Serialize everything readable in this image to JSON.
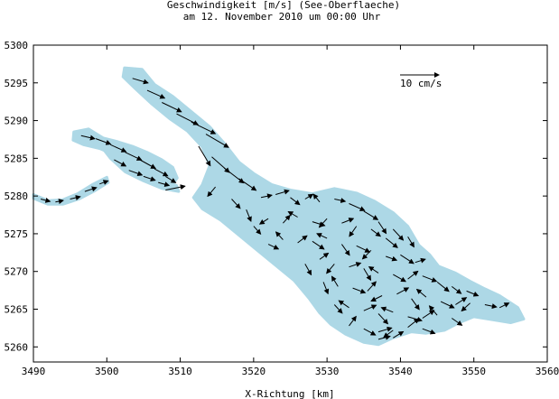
{
  "chart_data": {
    "type": "vector-field",
    "title": "Geschwindigkeit [m/s] (See-Oberflaeche)",
    "subtitle": "am 12. November 2010 um 00:00 Uhr",
    "xlabel": "X-Richtung [km]",
    "ylabel": "",
    "xlim": [
      3490,
      3560
    ],
    "ylim": [
      5258,
      5300
    ],
    "xticks": [
      3490,
      3500,
      3510,
      3520,
      3530,
      3540,
      3550,
      3560
    ],
    "yticks": [
      5260,
      5265,
      5270,
      5275,
      5280,
      5285,
      5290,
      5295,
      5300
    ],
    "grid": false,
    "reference_vector": {
      "label": "10 cm/s",
      "value": 0.1
    },
    "colors": {
      "lake": "#add8e6",
      "vector": "#000000",
      "frame": "#000000"
    },
    "lake_outline": [
      [
        3502.4,
        5297.0
      ],
      [
        3504.8,
        5296.8
      ],
      [
        3506.5,
        5294.8
      ],
      [
        3509.0,
        5293.2
      ],
      [
        3511.5,
        5291.2
      ],
      [
        3514.0,
        5289.2
      ],
      [
        3516.0,
        5287.0
      ],
      [
        3518.0,
        5284.5
      ],
      [
        3520.0,
        5283.0
      ],
      [
        3522.5,
        5281.5
      ],
      [
        3525.0,
        5280.8
      ],
      [
        3528.0,
        5280.3
      ],
      [
        3531.0,
        5281.0
      ],
      [
        3534.0,
        5280.4
      ],
      [
        3536.5,
        5279.3
      ],
      [
        3539.0,
        5277.8
      ],
      [
        3541.0,
        5276.0
      ],
      [
        3542.5,
        5273.5
      ],
      [
        3544.0,
        5272.2
      ],
      [
        3545.2,
        5270.7
      ],
      [
        3547.5,
        5269.8
      ],
      [
        3549.5,
        5268.7
      ],
      [
        3551.5,
        5267.7
      ],
      [
        3553.5,
        5266.8
      ],
      [
        3556.0,
        5265.2
      ],
      [
        3556.8,
        5263.7
      ],
      [
        3555.0,
        5263.2
      ],
      [
        3552.5,
        5263.6
      ],
      [
        3550.0,
        5264.0
      ],
      [
        3548.0,
        5263.2
      ],
      [
        3546.0,
        5262.2
      ],
      [
        3543.5,
        5261.8
      ],
      [
        3541.5,
        5262.0
      ],
      [
        3539.0,
        5261.2
      ],
      [
        3537.0,
        5260.3
      ],
      [
        3535.0,
        5260.6
      ],
      [
        3532.5,
        5261.7
      ],
      [
        3530.5,
        5263.0
      ],
      [
        3529.0,
        5264.5
      ],
      [
        3527.5,
        5266.5
      ],
      [
        3525.5,
        5268.8
      ],
      [
        3523.0,
        5270.8
      ],
      [
        3520.5,
        5272.8
      ],
      [
        3518.0,
        5274.8
      ],
      [
        3515.5,
        5276.8
      ],
      [
        3513.0,
        5278.3
      ],
      [
        3511.8,
        5279.8
      ],
      [
        3513.0,
        5281.5
      ],
      [
        3514.0,
        5284.0
      ],
      [
        3513.0,
        5286.5
      ],
      [
        3511.0,
        5288.6
      ],
      [
        3508.5,
        5290.3
      ],
      [
        3506.0,
        5292.3
      ],
      [
        3503.8,
        5294.3
      ],
      [
        3502.2,
        5295.8
      ]
    ],
    "arm_outline": [
      [
        3495.5,
        5288.5
      ],
      [
        3497.5,
        5288.9
      ],
      [
        3499.5,
        5287.7
      ],
      [
        3501.5,
        5287.2
      ],
      [
        3503.5,
        5286.6
      ],
      [
        3505.5,
        5285.8
      ],
      [
        3507.5,
        5284.8
      ],
      [
        3509.0,
        5283.8
      ],
      [
        3509.6,
        5282.4
      ],
      [
        3509.0,
        5281.6
      ],
      [
        3507.0,
        5282.2
      ],
      [
        3505.0,
        5283.2
      ],
      [
        3503.0,
        5284.4
      ],
      [
        3501.0,
        5285.5
      ],
      [
        3499.0,
        5286.3
      ],
      [
        3496.8,
        5286.8
      ],
      [
        3495.4,
        5287.4
      ]
    ],
    "channel_outline": [
      [
        3499.5,
        5287.4
      ],
      [
        3500.6,
        5287.0
      ],
      [
        3502.5,
        5284.8
      ],
      [
        3505.0,
        5283.0
      ],
      [
        3507.0,
        5282.2
      ],
      [
        3509.5,
        5281.4
      ],
      [
        3509.8,
        5280.6
      ],
      [
        3507.5,
        5281.0
      ],
      [
        3505.0,
        5282.0
      ],
      [
        3502.5,
        5283.2
      ],
      [
        3500.5,
        5285.0
      ],
      [
        3499.2,
        5286.6
      ]
    ],
    "rhine_outline": [
      [
        3490.0,
        5280.2
      ],
      [
        3492.0,
        5279.4
      ],
      [
        3494.0,
        5279.5
      ],
      [
        3496.0,
        5280.3
      ],
      [
        3498.0,
        5281.5
      ],
      [
        3500.0,
        5282.5
      ],
      [
        3500.2,
        5281.8
      ],
      [
        3498.2,
        5280.6
      ],
      [
        3496.2,
        5279.6
      ],
      [
        3494.0,
        5278.9
      ],
      [
        3492.0,
        5278.9
      ],
      [
        3490.0,
        5279.7
      ]
    ],
    "vectors": [
      [
        3503.5,
        5295.6,
        0.04,
        -0.012
      ],
      [
        3505.5,
        5294.0,
        0.045,
        -0.02
      ],
      [
        3507.5,
        5292.4,
        0.05,
        -0.024
      ],
      [
        3509.5,
        5290.9,
        0.055,
        -0.028
      ],
      [
        3511.5,
        5289.8,
        0.062,
        -0.03
      ],
      [
        3513.5,
        5288.2,
        0.058,
        -0.034
      ],
      [
        3512.5,
        5286.6,
        0.03,
        -0.05
      ],
      [
        3514.3,
        5285.2,
        0.045,
        -0.04
      ],
      [
        3516.0,
        5283.7,
        0.05,
        -0.038
      ],
      [
        3518.0,
        5282.3,
        0.044,
        -0.03
      ],
      [
        3514.8,
        5281.2,
        -0.02,
        -0.024
      ],
      [
        3517.0,
        5279.6,
        0.022,
        -0.024
      ],
      [
        3519.0,
        5278.2,
        0.012,
        -0.03
      ],
      [
        3521.0,
        5279.8,
        0.028,
        0.006
      ],
      [
        3523.0,
        5280.2,
        0.034,
        0.01
      ],
      [
        3525.0,
        5279.8,
        0.024,
        -0.018
      ],
      [
        3527.0,
        5279.6,
        0.02,
        0.012
      ],
      [
        3529.0,
        5279.2,
        -0.016,
        0.02
      ],
      [
        3531.0,
        5279.6,
        0.028,
        -0.006
      ],
      [
        3533.0,
        5279.0,
        0.04,
        -0.018
      ],
      [
        3535.0,
        5278.0,
        0.036,
        -0.022
      ],
      [
        3537.0,
        5276.6,
        0.02,
        -0.03
      ],
      [
        3539.0,
        5275.6,
        0.026,
        -0.028
      ],
      [
        3541.0,
        5274.6,
        0.016,
        -0.026
      ],
      [
        3520.0,
        5276.0,
        0.018,
        -0.02
      ],
      [
        3522.0,
        5277.0,
        -0.022,
        -0.014
      ],
      [
        3524.0,
        5276.4,
        0.018,
        0.02
      ],
      [
        3526.0,
        5277.2,
        -0.024,
        0.014
      ],
      [
        3528.0,
        5276.6,
        0.032,
        -0.01
      ],
      [
        3530.0,
        5277.0,
        -0.02,
        -0.022
      ],
      [
        3532.0,
        5276.4,
        0.03,
        0.012
      ],
      [
        3534.0,
        5276.0,
        -0.018,
        -0.026
      ],
      [
        3536.0,
        5275.6,
        0.024,
        -0.018
      ],
      [
        3538.0,
        5274.4,
        0.03,
        -0.024
      ],
      [
        3522.0,
        5273.6,
        0.026,
        -0.012
      ],
      [
        3524.0,
        5274.2,
        -0.018,
        0.02
      ],
      [
        3526.0,
        5273.8,
        0.024,
        0.018
      ],
      [
        3528.0,
        5274.0,
        0.03,
        -0.02
      ],
      [
        3530.0,
        5274.4,
        -0.026,
        0.012
      ],
      [
        3532.0,
        5273.6,
        0.02,
        -0.028
      ],
      [
        3534.0,
        5273.4,
        0.034,
        -0.016
      ],
      [
        3536.0,
        5272.8,
        -0.022,
        -0.022
      ],
      [
        3538.0,
        5272.0,
        0.028,
        -0.01
      ],
      [
        3540.0,
        5272.2,
        0.034,
        -0.022
      ],
      [
        3542.0,
        5271.2,
        0.026,
        0.008
      ],
      [
        3527.0,
        5271.0,
        0.016,
        -0.028
      ],
      [
        3529.0,
        5271.6,
        0.022,
        0.016
      ],
      [
        3531.0,
        5271.0,
        -0.02,
        -0.024
      ],
      [
        3533.0,
        5270.6,
        0.03,
        0.01
      ],
      [
        3535.0,
        5270.4,
        0.018,
        -0.03
      ],
      [
        3537.0,
        5269.8,
        -0.024,
        0.016
      ],
      [
        3539.0,
        5269.6,
        0.032,
        -0.018
      ],
      [
        3541.0,
        5269.0,
        0.026,
        0.02
      ],
      [
        3543.0,
        5269.4,
        0.036,
        -0.014
      ],
      [
        3545.0,
        5268.6,
        0.03,
        -0.024
      ],
      [
        3547.0,
        5268.0,
        0.024,
        -0.018
      ],
      [
        3549.0,
        5267.4,
        0.03,
        -0.012
      ],
      [
        3529.5,
        5268.6,
        0.012,
        -0.03
      ],
      [
        3531.5,
        5268.0,
        -0.016,
        0.026
      ],
      [
        3533.5,
        5267.8,
        0.032,
        -0.012
      ],
      [
        3535.5,
        5267.4,
        0.022,
        0.024
      ],
      [
        3537.5,
        5266.8,
        -0.028,
        -0.014
      ],
      [
        3539.5,
        5267.0,
        0.03,
        0.016
      ],
      [
        3541.5,
        5266.4,
        0.02,
        -0.028
      ],
      [
        3543.5,
        5266.6,
        -0.024,
        0.02
      ],
      [
        3545.5,
        5266.0,
        0.034,
        -0.016
      ],
      [
        3547.5,
        5265.6,
        0.028,
        0.018
      ],
      [
        3549.5,
        5265.8,
        -0.022,
        -0.02
      ],
      [
        3551.5,
        5265.6,
        0.03,
        -0.006
      ],
      [
        3553.5,
        5265.2,
        0.024,
        0.012
      ],
      [
        3531.0,
        5265.6,
        0.02,
        -0.022
      ],
      [
        3533.0,
        5265.2,
        -0.026,
        0.018
      ],
      [
        3535.0,
        5264.8,
        0.032,
        0.014
      ],
      [
        3537.0,
        5264.4,
        0.024,
        -0.026
      ],
      [
        3539.0,
        5264.6,
        -0.03,
        0.012
      ],
      [
        3541.0,
        5264.0,
        0.036,
        -0.01
      ],
      [
        3543.0,
        5263.8,
        0.03,
        0.02
      ],
      [
        3545.0,
        5264.2,
        -0.02,
        0.024
      ],
      [
        3547.0,
        5263.8,
        0.026,
        -0.018
      ],
      [
        3533.0,
        5262.8,
        0.018,
        0.024
      ],
      [
        3535.0,
        5262.4,
        0.03,
        -0.016
      ],
      [
        3537.0,
        5262.0,
        0.034,
        0.01
      ],
      [
        3539.0,
        5262.2,
        -0.024,
        -0.018
      ],
      [
        3541.0,
        5262.6,
        0.028,
        0.022
      ],
      [
        3543.0,
        5262.4,
        0.032,
        -0.012
      ],
      [
        3537.0,
        5261.0,
        0.03,
        0.008
      ],
      [
        3539.0,
        5261.2,
        0.026,
        0.016
      ],
      [
        3496.5,
        5288.0,
        0.035,
        -0.008
      ],
      [
        3498.5,
        5287.6,
        0.038,
        -0.014
      ],
      [
        3500.5,
        5286.8,
        0.04,
        -0.018
      ],
      [
        3502.5,
        5285.8,
        0.042,
        -0.02
      ],
      [
        3504.5,
        5284.8,
        0.04,
        -0.022
      ],
      [
        3506.5,
        5283.6,
        0.034,
        -0.018
      ],
      [
        3508.0,
        5282.6,
        0.026,
        -0.016
      ],
      [
        3501.0,
        5284.8,
        0.03,
        -0.016
      ],
      [
        3503.0,
        5283.4,
        0.034,
        -0.012
      ],
      [
        3505.0,
        5282.6,
        0.03,
        -0.01
      ],
      [
        3507.0,
        5281.8,
        0.028,
        -0.008
      ],
      [
        3508.0,
        5280.8,
        0.05,
        0.01
      ],
      [
        3491.0,
        5279.6,
        0.024,
        -0.006
      ],
      [
        3493.0,
        5279.2,
        0.02,
        0.004
      ],
      [
        3495.0,
        5279.6,
        0.026,
        0.006
      ],
      [
        3497.0,
        5280.6,
        0.03,
        0.01
      ],
      [
        3499.0,
        5281.6,
        0.022,
        0.008
      ]
    ]
  }
}
